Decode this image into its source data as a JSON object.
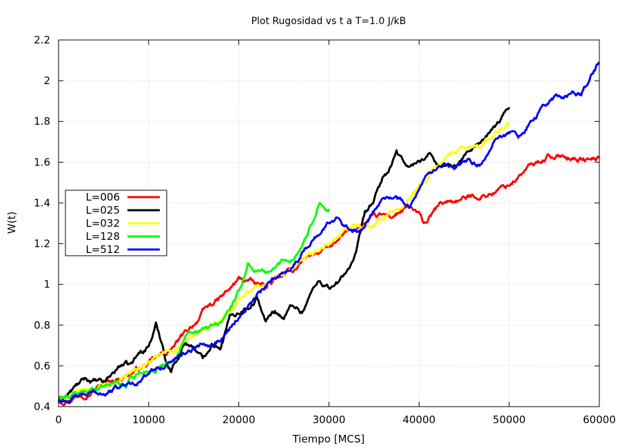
{
  "chart_data": {
    "type": "line",
    "title": "Plot Rugosidad vs t a T=1.0 J/kB",
    "xlabel": "Tiempo [MCS]",
    "ylabel": "W(t)",
    "xlim": [
      0,
      60000
    ],
    "ylim": [
      0.4,
      2.2
    ],
    "x_ticks": [
      "0",
      "10000",
      "20000",
      "30000",
      "40000",
      "50000",
      "60000"
    ],
    "y_ticks": [
      "0.4",
      "0.6",
      "0.8",
      "1",
      "1.2",
      "1.4",
      "1.6",
      "1.8",
      "2",
      "2.2"
    ],
    "grid": true,
    "legend_position": "left-middle",
    "series": [
      {
        "name": "L=006",
        "color": "#ff0000",
        "points": [
          [
            0,
            0.43
          ],
          [
            2000,
            0.46
          ],
          [
            4000,
            0.5
          ],
          [
            6000,
            0.53
          ],
          [
            8000,
            0.57
          ],
          [
            10000,
            0.61
          ],
          [
            12000,
            0.66
          ],
          [
            14000,
            0.75
          ],
          [
            16000,
            0.86
          ],
          [
            17000,
            0.9
          ],
          [
            18000,
            0.93
          ],
          [
            19000,
            0.97
          ],
          [
            20000,
            1.02
          ],
          [
            21000,
            1.02
          ],
          [
            22000,
            0.99
          ],
          [
            23000,
            0.99
          ],
          [
            24000,
            1.02
          ],
          [
            26000,
            1.06
          ],
          [
            27000,
            1.12
          ],
          [
            28000,
            1.15
          ],
          [
            29000,
            1.16
          ],
          [
            30000,
            1.18
          ],
          [
            31000,
            1.2
          ],
          [
            32000,
            1.25
          ],
          [
            33000,
            1.28
          ],
          [
            34000,
            1.3
          ],
          [
            35000,
            1.32
          ],
          [
            36000,
            1.33
          ],
          [
            37000,
            1.33
          ],
          [
            38000,
            1.36
          ],
          [
            39000,
            1.37
          ],
          [
            40000,
            1.33
          ],
          [
            40500,
            1.29
          ],
          [
            41000,
            1.31
          ],
          [
            42000,
            1.37
          ],
          [
            43000,
            1.4
          ],
          [
            44000,
            1.41
          ],
          [
            45000,
            1.42
          ],
          [
            46000,
            1.43
          ],
          [
            47000,
            1.44
          ],
          [
            48000,
            1.45
          ],
          [
            49000,
            1.47
          ],
          [
            50000,
            1.49
          ],
          [
            51000,
            1.53
          ],
          [
            52000,
            1.57
          ],
          [
            53000,
            1.59
          ],
          [
            54000,
            1.62
          ],
          [
            54500,
            1.64
          ],
          [
            55000,
            1.61
          ],
          [
            56000,
            1.63
          ],
          [
            57000,
            1.63
          ],
          [
            58000,
            1.62
          ],
          [
            59000,
            1.61
          ],
          [
            60000,
            1.62
          ]
        ]
      },
      {
        "name": "L=025",
        "color": "#000000",
        "points": [
          [
            0,
            0.43
          ],
          [
            1000,
            0.46
          ],
          [
            2000,
            0.5
          ],
          [
            3000,
            0.53
          ],
          [
            4000,
            0.52
          ],
          [
            5000,
            0.51
          ],
          [
            6000,
            0.56
          ],
          [
            7000,
            0.61
          ],
          [
            8000,
            0.6
          ],
          [
            9000,
            0.66
          ],
          [
            10000,
            0.7
          ],
          [
            10800,
            0.8
          ],
          [
            11500,
            0.71
          ],
          [
            12000,
            0.62
          ],
          [
            12500,
            0.58
          ],
          [
            13000,
            0.63
          ],
          [
            14000,
            0.72
          ],
          [
            15000,
            0.7
          ],
          [
            16000,
            0.63
          ],
          [
            17000,
            0.72
          ],
          [
            18000,
            0.71
          ],
          [
            19000,
            0.84
          ],
          [
            20000,
            0.87
          ],
          [
            21000,
            0.9
          ],
          [
            22000,
            0.94
          ],
          [
            23000,
            0.82
          ],
          [
            24000,
            0.87
          ],
          [
            25000,
            0.84
          ],
          [
            26000,
            0.9
          ],
          [
            27000,
            0.87
          ],
          [
            28000,
            0.96
          ],
          [
            29000,
            1.02
          ],
          [
            30000,
            0.99
          ],
          [
            31000,
            1.0
          ],
          [
            32000,
            1.07
          ],
          [
            33000,
            1.14
          ],
          [
            34000,
            1.33
          ],
          [
            35000,
            1.4
          ],
          [
            36000,
            1.52
          ],
          [
            37000,
            1.58
          ],
          [
            37500,
            1.64
          ],
          [
            38000,
            1.6
          ],
          [
            39000,
            1.58
          ],
          [
            40000,
            1.6
          ],
          [
            41000,
            1.64
          ],
          [
            42000,
            1.6
          ],
          [
            43000,
            1.58
          ],
          [
            44000,
            1.57
          ],
          [
            45000,
            1.63
          ],
          [
            46000,
            1.67
          ],
          [
            47000,
            1.71
          ],
          [
            48000,
            1.74
          ],
          [
            49000,
            1.8
          ],
          [
            50000,
            1.87
          ]
        ]
      },
      {
        "name": "L=032",
        "color": "#ffff00",
        "points": [
          [
            0,
            0.43
          ],
          [
            2000,
            0.46
          ],
          [
            4000,
            0.49
          ],
          [
            6000,
            0.52
          ],
          [
            8000,
            0.57
          ],
          [
            10000,
            0.61
          ],
          [
            12000,
            0.66
          ],
          [
            14000,
            0.71
          ],
          [
            16000,
            0.77
          ],
          [
            18000,
            0.81
          ],
          [
            20000,
            0.92
          ],
          [
            22000,
            0.98
          ],
          [
            24000,
            1.03
          ],
          [
            26000,
            1.06
          ],
          [
            28000,
            1.12
          ],
          [
            30000,
            1.2
          ],
          [
            32000,
            1.26
          ],
          [
            34000,
            1.29
          ],
          [
            36000,
            1.33
          ],
          [
            38000,
            1.39
          ],
          [
            40000,
            1.47
          ],
          [
            42000,
            1.6
          ],
          [
            44000,
            1.64
          ],
          [
            46000,
            1.67
          ],
          [
            48000,
            1.72
          ],
          [
            50000,
            1.79
          ]
        ]
      },
      {
        "name": "L=128",
        "color": "#00ff00",
        "points": [
          [
            0,
            0.43
          ],
          [
            2000,
            0.46
          ],
          [
            4000,
            0.49
          ],
          [
            6000,
            0.53
          ],
          [
            7500,
            0.5
          ],
          [
            8000,
            0.55
          ],
          [
            10000,
            0.58
          ],
          [
            12000,
            0.62
          ],
          [
            13000,
            0.65
          ],
          [
            14000,
            0.74
          ],
          [
            16000,
            0.77
          ],
          [
            18000,
            0.8
          ],
          [
            19000,
            0.88
          ],
          [
            20000,
            0.95
          ],
          [
            21000,
            1.1
          ],
          [
            22000,
            1.07
          ],
          [
            23000,
            1.06
          ],
          [
            24000,
            1.08
          ],
          [
            25000,
            1.12
          ],
          [
            26000,
            1.13
          ],
          [
            27000,
            1.2
          ],
          [
            28000,
            1.29
          ],
          [
            29000,
            1.42
          ],
          [
            29500,
            1.38
          ],
          [
            30000,
            1.37
          ]
        ]
      },
      {
        "name": "L=512",
        "color": "#0000ff",
        "points": [
          [
            0,
            0.43
          ],
          [
            2000,
            0.44
          ],
          [
            4000,
            0.46
          ],
          [
            6000,
            0.48
          ],
          [
            8000,
            0.52
          ],
          [
            10000,
            0.56
          ],
          [
            12000,
            0.61
          ],
          [
            14000,
            0.67
          ],
          [
            16000,
            0.72
          ],
          [
            18000,
            0.74
          ],
          [
            20000,
            0.85
          ],
          [
            22000,
            0.94
          ],
          [
            24000,
            1.02
          ],
          [
            26000,
            1.1
          ],
          [
            27000,
            1.15
          ],
          [
            28000,
            1.22
          ],
          [
            29000,
            1.26
          ],
          [
            30000,
            1.3
          ],
          [
            31000,
            1.34
          ],
          [
            32000,
            1.3
          ],
          [
            33000,
            1.28
          ],
          [
            34000,
            1.3
          ],
          [
            35000,
            1.38
          ],
          [
            36000,
            1.46
          ],
          [
            37000,
            1.44
          ],
          [
            38000,
            1.42
          ],
          [
            39000,
            1.4
          ],
          [
            40000,
            1.46
          ],
          [
            41000,
            1.52
          ],
          [
            42000,
            1.55
          ],
          [
            43000,
            1.56
          ],
          [
            44000,
            1.55
          ],
          [
            45000,
            1.6
          ],
          [
            46000,
            1.59
          ],
          [
            47000,
            1.58
          ],
          [
            48000,
            1.66
          ],
          [
            49000,
            1.74
          ],
          [
            50000,
            1.75
          ],
          [
            51000,
            1.72
          ],
          [
            52000,
            1.78
          ],
          [
            53000,
            1.82
          ],
          [
            54000,
            1.88
          ],
          [
            55000,
            1.92
          ],
          [
            56000,
            1.91
          ],
          [
            57000,
            1.94
          ],
          [
            58000,
            1.93
          ],
          [
            59000,
            2.02
          ],
          [
            60000,
            2.09
          ]
        ]
      }
    ]
  }
}
